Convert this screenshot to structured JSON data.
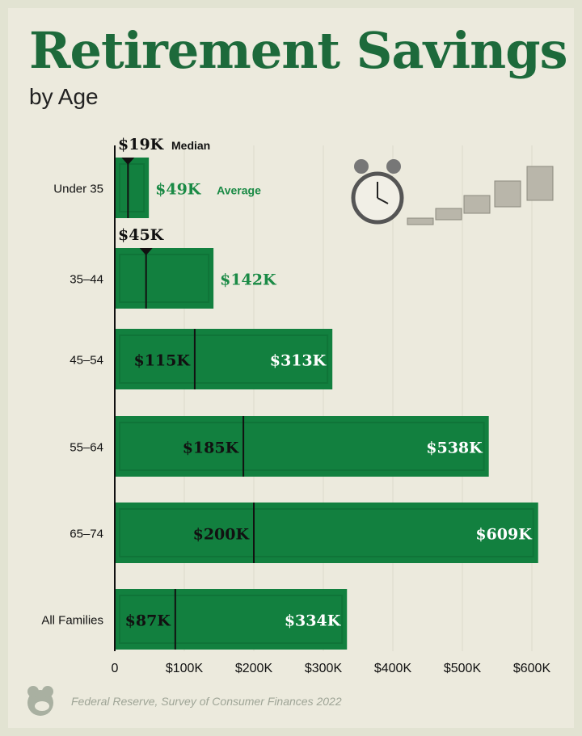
{
  "title": "Retirement Savings",
  "subtitle": "by Age",
  "source": "Federal Reserve, Survey of Consumer Finances 2022",
  "colors": {
    "bar": "#12803f",
    "title": "#1d6a3b",
    "average_label_outside": "#1a8a45",
    "background": "#eceadd"
  },
  "chart_data": {
    "type": "bar",
    "orientation": "horizontal",
    "categories": [
      "Under 35",
      "35–44",
      "45–54",
      "55–64",
      "65–74",
      "All Families"
    ],
    "series": [
      {
        "name": "Average",
        "values": [
          49,
          142,
          313,
          538,
          609,
          334
        ]
      },
      {
        "name": "Median",
        "values": [
          19,
          45,
          115,
          185,
          200,
          87
        ]
      }
    ],
    "average_labels": [
      "$49K",
      "$142K",
      "$313K",
      "$538K",
      "$609K",
      "$334K"
    ],
    "median_labels": [
      "$19K",
      "$45K",
      "$115K",
      "$185K",
      "$200K",
      "$87K"
    ],
    "median_legend": "Median",
    "average_legend": "Average",
    "xlim": [
      0,
      600
    ],
    "x_ticks": [
      "0",
      "$100K",
      "$200K",
      "$300K",
      "$400K",
      "$500K",
      "$600K"
    ],
    "x_tick_values": [
      0,
      100,
      200,
      300,
      400,
      500,
      600
    ],
    "grid": true,
    "legend": "inline"
  }
}
